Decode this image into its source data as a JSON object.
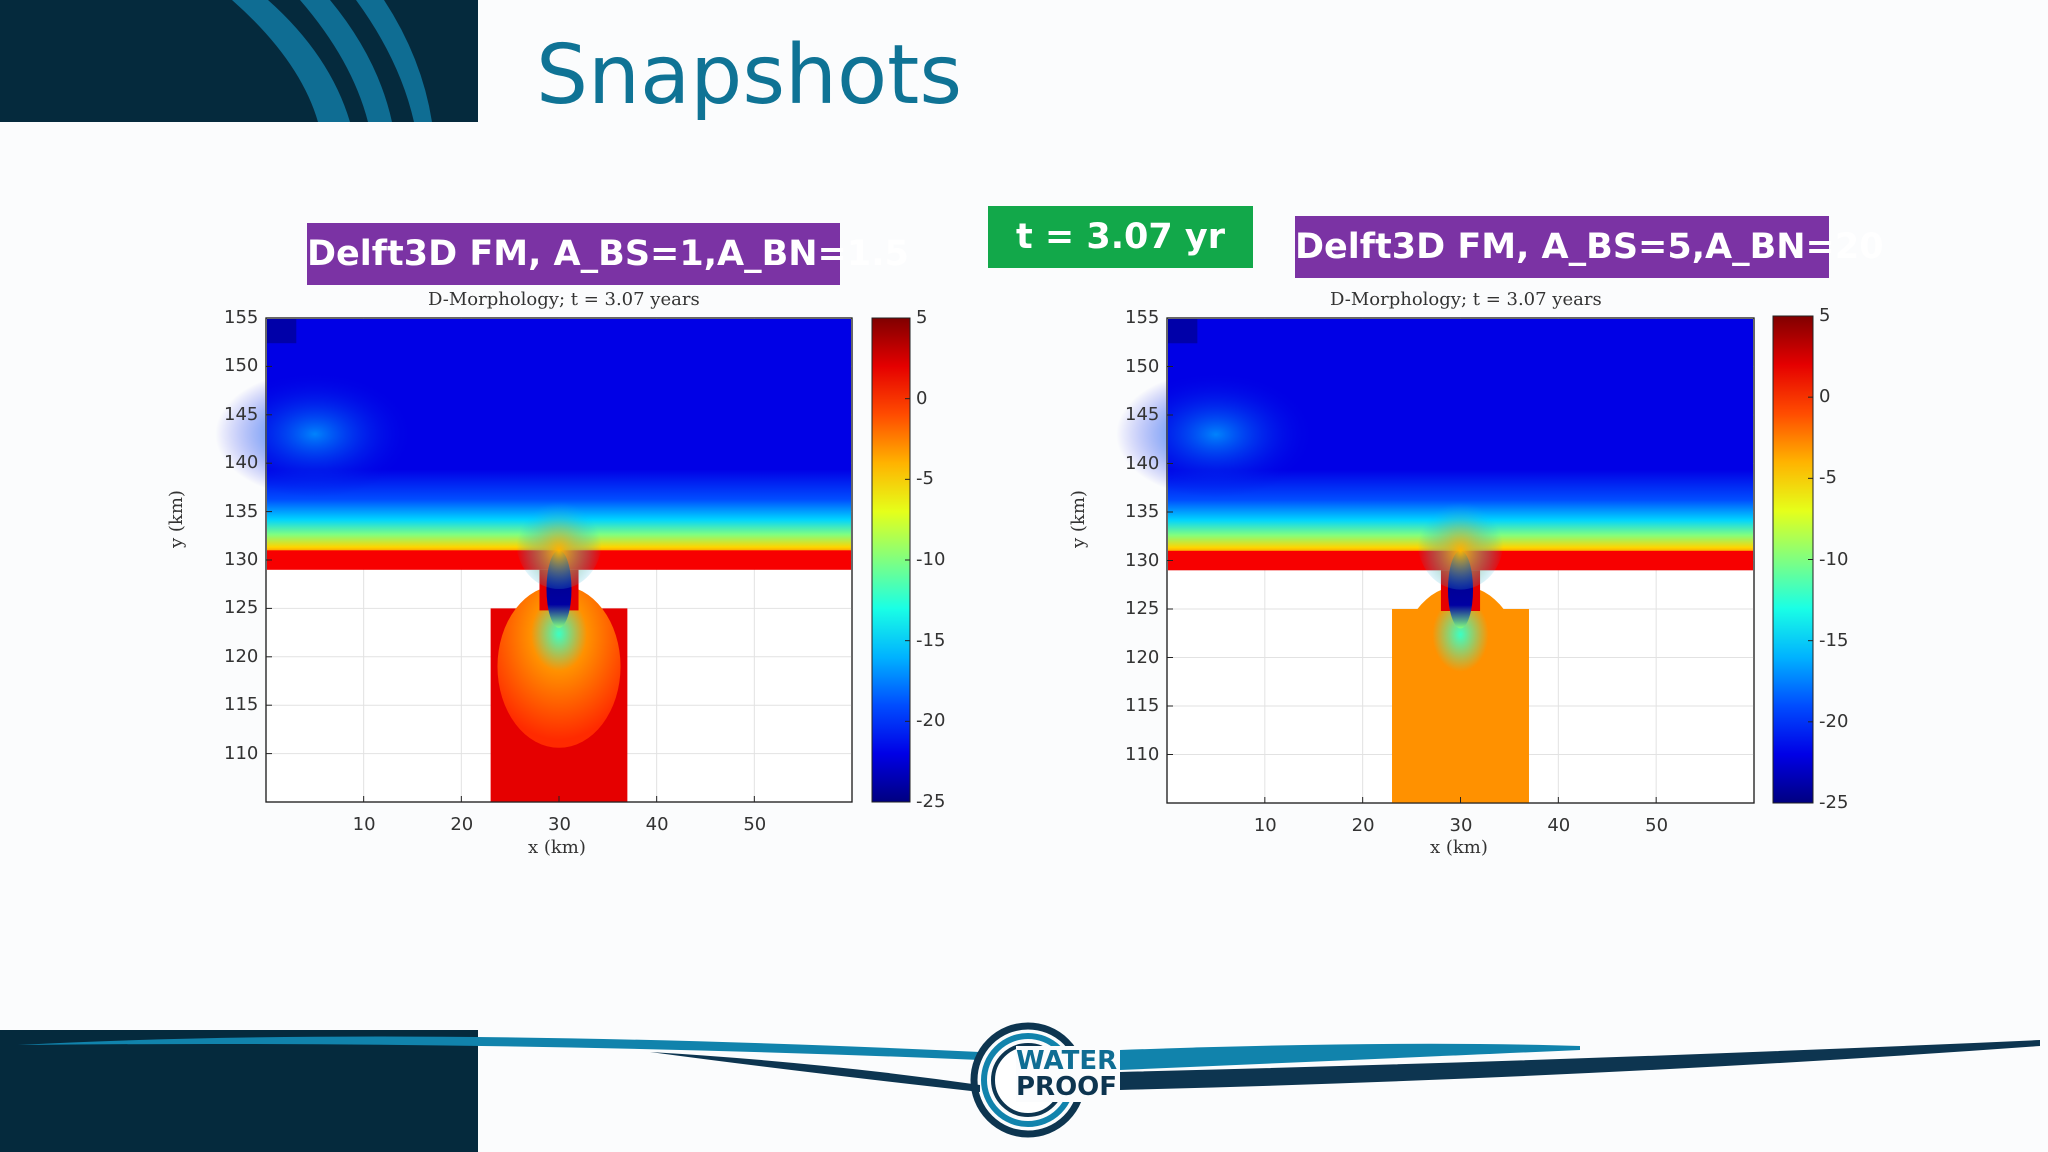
{
  "slide": {
    "title": "Snapshots",
    "time_label": "t = 3.07 yr",
    "logo": {
      "line1": "WATER",
      "line2": "PROOF"
    },
    "colors": {
      "title": "#0f7395",
      "label_purple": "#7b33a4",
      "label_green": "#12a84a",
      "dark_navy": "#052a3d",
      "wave_blue": "#0f6d93"
    }
  },
  "chart_data": [
    {
      "type": "heatmap",
      "panel_label": "Delft3D FM, A_BS=1,A_BN=1.5",
      "title": "D-Morphology; t = 3.07 years",
      "xlabel": "x (km)",
      "ylabel": "y (km)",
      "xlim": [
        0,
        60
      ],
      "ylim": [
        105,
        155
      ],
      "xticks": [
        "10",
        "20",
        "30",
        "40",
        "50"
      ],
      "yticks": [
        "155",
        "150",
        "145",
        "140",
        "135",
        "130",
        "125",
        "120",
        "115",
        "110"
      ],
      "grid": true,
      "colormap": "jet",
      "colorbar": {
        "range": [
          -25,
          5
        ],
        "ticks": [
          "5",
          "0",
          "-5",
          "-10",
          "-15",
          "-20",
          "-25"
        ]
      },
      "sea_depth_offshore": -22,
      "coast_y": 129,
      "basin_x": [
        23,
        37
      ],
      "basin_y": [
        105,
        125
      ],
      "inlet_x": [
        28,
        32
      ],
      "inlet_channel_depth": -25,
      "basin_bed_level": 0,
      "basin_margin_level": 2
    },
    {
      "type": "heatmap",
      "panel_label": "Delft3D FM, A_BS=5,A_BN=20",
      "title": "D-Morphology; t = 3.07 years",
      "xlabel": "x (km)",
      "ylabel": "y (km)",
      "xlim": [
        0,
        60
      ],
      "ylim": [
        105,
        155
      ],
      "xticks": [
        "10",
        "20",
        "30",
        "40",
        "50"
      ],
      "yticks": [
        "155",
        "150",
        "145",
        "140",
        "135",
        "130",
        "125",
        "120",
        "115",
        "110"
      ],
      "grid": true,
      "colormap": "jet",
      "colorbar": {
        "range": [
          -25,
          5
        ],
        "ticks": [
          "5",
          "0",
          "-5",
          "-10",
          "-15",
          "-20",
          "-25"
        ]
      },
      "sea_depth_offshore": -22,
      "coast_y": 129,
      "basin_x": [
        23,
        37
      ],
      "basin_y": [
        105,
        125
      ],
      "inlet_x": [
        28,
        32
      ],
      "inlet_channel_depth": -25,
      "basin_bed_level": -3,
      "basin_margin_level": -3
    }
  ]
}
